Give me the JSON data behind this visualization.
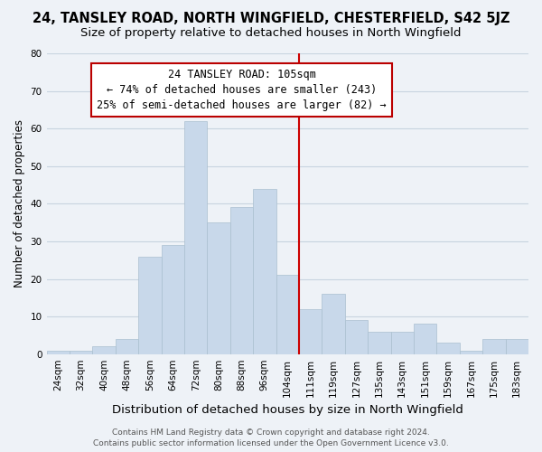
{
  "title": "24, TANSLEY ROAD, NORTH WINGFIELD, CHESTERFIELD, S42 5JZ",
  "subtitle": "Size of property relative to detached houses in North Wingfield",
  "xlabel": "Distribution of detached houses by size in North Wingfield",
  "ylabel": "Number of detached properties",
  "bar_color": "#c8d8ea",
  "bar_edge_color": "#aabfcf",
  "grid_color": "#c8d4e0",
  "background_color": "#eef2f7",
  "x_labels": [
    "24sqm",
    "32sqm",
    "40sqm",
    "48sqm",
    "56sqm",
    "64sqm",
    "72sqm",
    "80sqm",
    "88sqm",
    "96sqm",
    "104sqm",
    "111sqm",
    "119sqm",
    "127sqm",
    "135sqm",
    "143sqm",
    "151sqm",
    "159sqm",
    "167sqm",
    "175sqm",
    "183sqm"
  ],
  "bar_heights": [
    1,
    1,
    2,
    4,
    26,
    29,
    62,
    35,
    39,
    44,
    21,
    12,
    16,
    9,
    6,
    6,
    8,
    3,
    1,
    4,
    4
  ],
  "ylim": [
    0,
    80
  ],
  "yticks": [
    0,
    10,
    20,
    30,
    40,
    50,
    60,
    70,
    80
  ],
  "vline_x": 10.5,
  "vline_color": "#cc0000",
  "annotation_title": "24 TANSLEY ROAD: 105sqm",
  "annotation_line1": "← 74% of detached houses are smaller (243)",
  "annotation_line2": "25% of semi-detached houses are larger (82) →",
  "annotation_box_color": "#ffffff",
  "annotation_box_edge": "#bb0000",
  "footer1": "Contains HM Land Registry data © Crown copyright and database right 2024.",
  "footer2": "Contains public sector information licensed under the Open Government Licence v3.0.",
  "title_fontsize": 10.5,
  "subtitle_fontsize": 9.5,
  "xlabel_fontsize": 9.5,
  "ylabel_fontsize": 8.5,
  "tick_fontsize": 7.5,
  "annotation_fontsize": 8.5,
  "footer_fontsize": 6.5
}
